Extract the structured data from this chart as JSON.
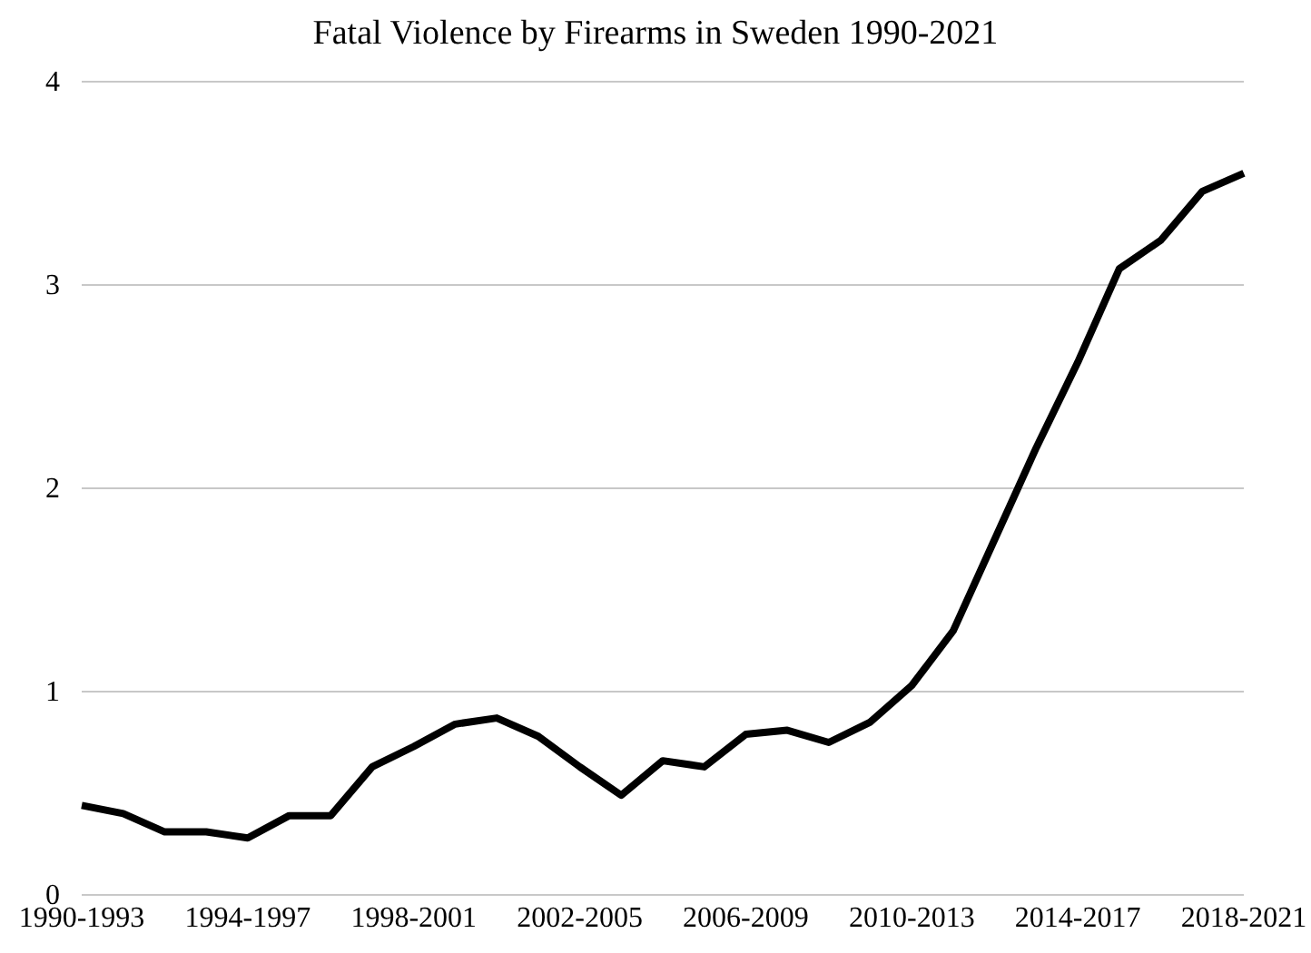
{
  "chart_data": {
    "type": "line",
    "title": "Fatal Violence by Firearms in Sweden 1990-2021",
    "categories": [
      "1990-1993",
      null,
      null,
      null,
      "1994-1997",
      null,
      null,
      null,
      "1998-2001",
      null,
      null,
      null,
      "2002-2005",
      null,
      null,
      null,
      "2006-2009",
      null,
      null,
      null,
      "2010-2013",
      null,
      null,
      null,
      "2014-2017",
      null,
      null,
      null,
      "2018-2021"
    ],
    "series": [
      {
        "color": "#000000",
        "values": [
          0.44,
          0.4,
          0.31,
          0.31,
          0.28,
          0.39,
          0.39,
          0.63,
          0.73,
          0.84,
          0.87,
          0.78,
          0.63,
          0.49,
          0.66,
          0.63,
          0.79,
          0.81,
          0.75,
          0.85,
          1.03,
          1.3,
          1.75,
          2.2,
          2.62,
          3.08,
          3.22,
          3.46,
          3.55
        ]
      }
    ],
    "ylim": [
      0,
      4
    ],
    "yticks": [
      0,
      1,
      2,
      3,
      4
    ],
    "grid": "y",
    "marker": "none",
    "line_style": "solid"
  }
}
